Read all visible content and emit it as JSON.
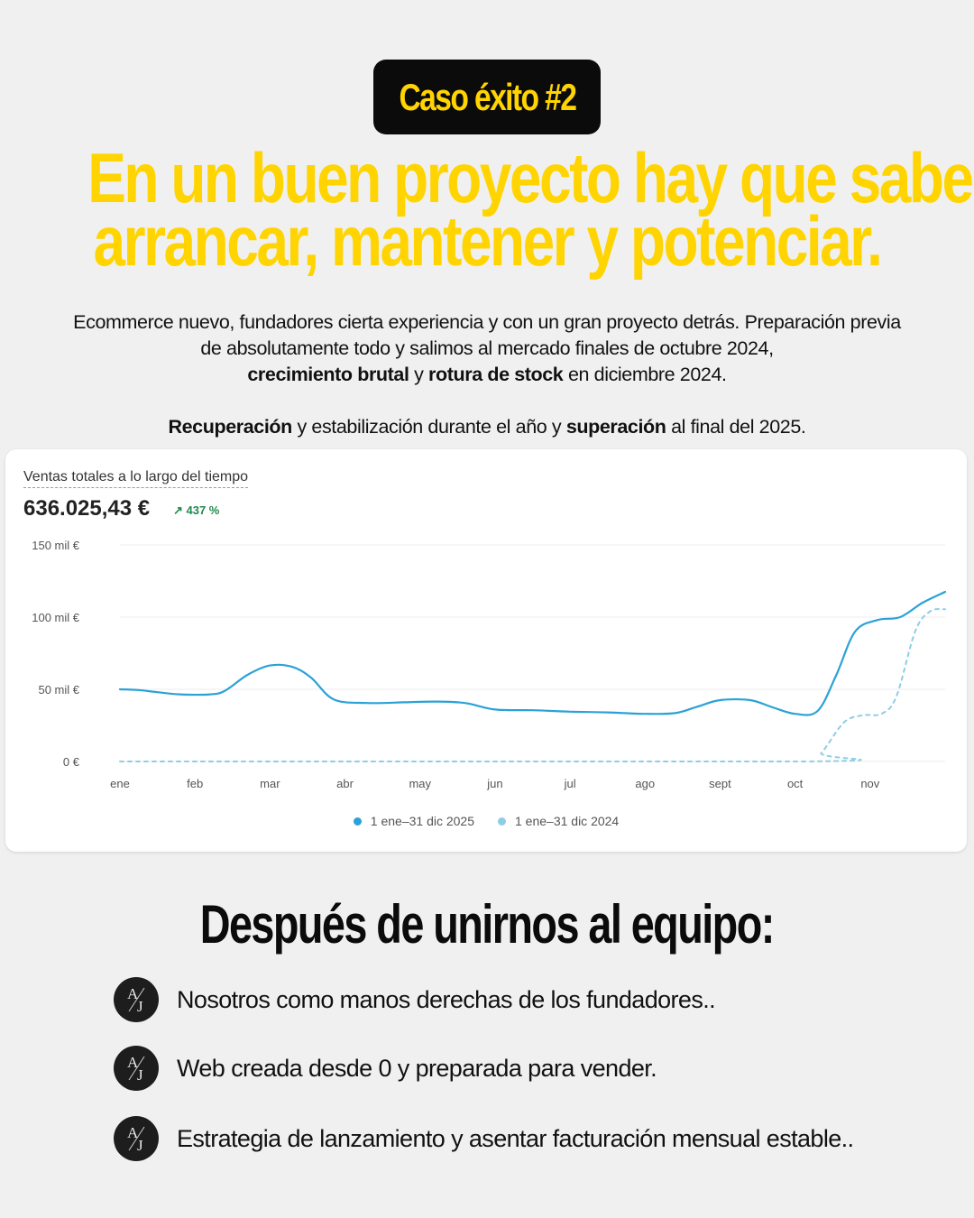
{
  "badge": {
    "label": "Caso éxito #2"
  },
  "headline": {
    "line1": "En un buen proyecto hay que saber",
    "line2": "arrancar, mantener y potenciar."
  },
  "intro": {
    "p1_line1": "Ecommerce nuevo, fundadores cierta experiencia y con un gran proyecto detrás. Preparación previa",
    "p1_line2": "de absolutamente todo y salimos al mercado  finales de octubre 2024,",
    "p1_line3_b1": "crecimiento brutal",
    "p1_line3_t1": " y ",
    "p1_line3_b2": "rotura de stock",
    "p1_line3_t2": " en diciembre 2024.",
    "p2_b1": "Recuperación",
    "p2_t1": " y estabilización durante el año y ",
    "p2_b2": "superación",
    "p2_t2": " al final del 2025."
  },
  "card": {
    "title": "Ventas totales a lo largo del tiempo",
    "total": "636.025,43 €",
    "change": "↗ 437 %"
  },
  "chart_data": {
    "type": "line",
    "title": "Ventas totales a lo largo del tiempo",
    "xlabel": "",
    "ylabel": "",
    "categories": [
      "ene",
      "feb",
      "mar",
      "abr",
      "may",
      "jun",
      "jul",
      "ago",
      "sept",
      "oct",
      "nov"
    ],
    "y_ticks": [
      "150 mil €",
      "100 mil €",
      "50 mil €",
      "0 €"
    ],
    "ylim": [
      0,
      150000
    ],
    "x_range": [
      0,
      11
    ],
    "grid": true,
    "legend_position": "bottom-center",
    "series": [
      {
        "name": "1 ene–31 dic 2025",
        "color": "#2aa2d6",
        "style": "solid",
        "points": [
          [
            0,
            50000
          ],
          [
            0.25,
            49500
          ],
          [
            0.5,
            48000
          ],
          [
            0.8,
            46500
          ],
          [
            1.2,
            46500
          ],
          [
            1.4,
            49000
          ],
          [
            1.7,
            60000
          ],
          [
            2.0,
            66500
          ],
          [
            2.3,
            65500
          ],
          [
            2.55,
            58000
          ],
          [
            2.85,
            43000
          ],
          [
            3.3,
            40500
          ],
          [
            3.8,
            41000
          ],
          [
            4.2,
            41500
          ],
          [
            4.6,
            40500
          ],
          [
            5.0,
            36000
          ],
          [
            5.5,
            35500
          ],
          [
            6.0,
            34500
          ],
          [
            6.5,
            34000
          ],
          [
            7.0,
            33000
          ],
          [
            7.4,
            33500
          ],
          [
            7.7,
            38000
          ],
          [
            8.0,
            42500
          ],
          [
            8.4,
            42500
          ],
          [
            8.7,
            37500
          ],
          [
            9.0,
            33000
          ],
          [
            9.3,
            35000
          ],
          [
            9.55,
            60000
          ],
          [
            9.8,
            90000
          ],
          [
            10.1,
            98000
          ],
          [
            10.4,
            100000
          ],
          [
            10.7,
            110000
          ],
          [
            11.0,
            117500
          ]
        ]
      },
      {
        "name": "1 ene–31 dic 2024",
        "color": "#8fcde6",
        "style": "dashed",
        "points": [
          [
            0,
            0
          ],
          [
            9.15,
            0
          ],
          [
            9.35,
            6000
          ],
          [
            9.65,
            27000
          ],
          [
            9.9,
            32000
          ],
          [
            10.15,
            33000
          ],
          [
            10.35,
            45000
          ],
          [
            10.6,
            90000
          ],
          [
            10.8,
            104000
          ],
          [
            11.0,
            105500
          ]
        ]
      }
    ]
  },
  "legend": {
    "item1": "1 ene–31 dic 2025",
    "item2": "1 ene–31 dic 2024"
  },
  "section": {
    "title": "Después de unirnos al equipo:"
  },
  "bullets": {
    "item1": "Nosotros como manos derechas de los fundadores..",
    "item2": "Web creada desde 0 y preparada para vender.",
    "item3": "Estrategia de lanzamiento y asentar facturación mensual estable..",
    "logo_letter_a": "A",
    "logo_letter_j": "J"
  },
  "colors": {
    "accent_yellow": "#ffd400",
    "dark": "#0b0b0b",
    "series_2025": "#2aa2d6",
    "series_2024": "#8fcde6",
    "positive_change": "#1f8a4c"
  }
}
